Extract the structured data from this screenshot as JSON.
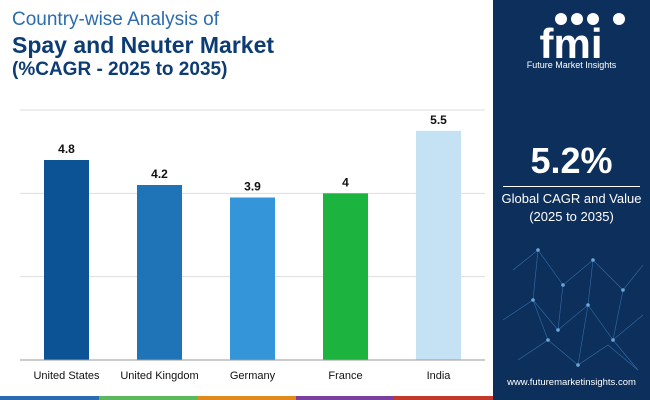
{
  "header": {
    "line1": "Country-wise Analysis of",
    "line2": "Spay and Neuter Market",
    "line3": "(%CAGR - 2025 to 2035)"
  },
  "chart_data": {
    "type": "bar",
    "title": "Country-wise Analysis of Spay and Neuter Market (%CAGR - 2025 to 2035)",
    "categories": [
      "United States",
      "United Kingdom",
      "Germany",
      "France",
      "India"
    ],
    "values": [
      4.8,
      4.2,
      3.9,
      4,
      5.5
    ],
    "value_labels": [
      "4.8",
      "4.2",
      "3.9",
      "4",
      "5.5"
    ],
    "colors": [
      "#0b5394",
      "#1f74b8",
      "#3495d8",
      "#1db33f",
      "#c5e2f5"
    ],
    "ylim": [
      0,
      6
    ],
    "grid": true,
    "xlabel": "",
    "ylabel": ""
  },
  "sidebar": {
    "brand": "Future Market Insights",
    "cagr_value": "5.2%",
    "caption_line1": "Global CAGR and Value",
    "caption_line2": "(2025 to 2035)",
    "website": "www.futuremarketinsights.com",
    "bg_color": "#0d2f5c"
  },
  "footer_colors": [
    "#2b6cb0",
    "#5cb85c",
    "#e08a1e",
    "#7b3fa0",
    "#c0392b"
  ]
}
